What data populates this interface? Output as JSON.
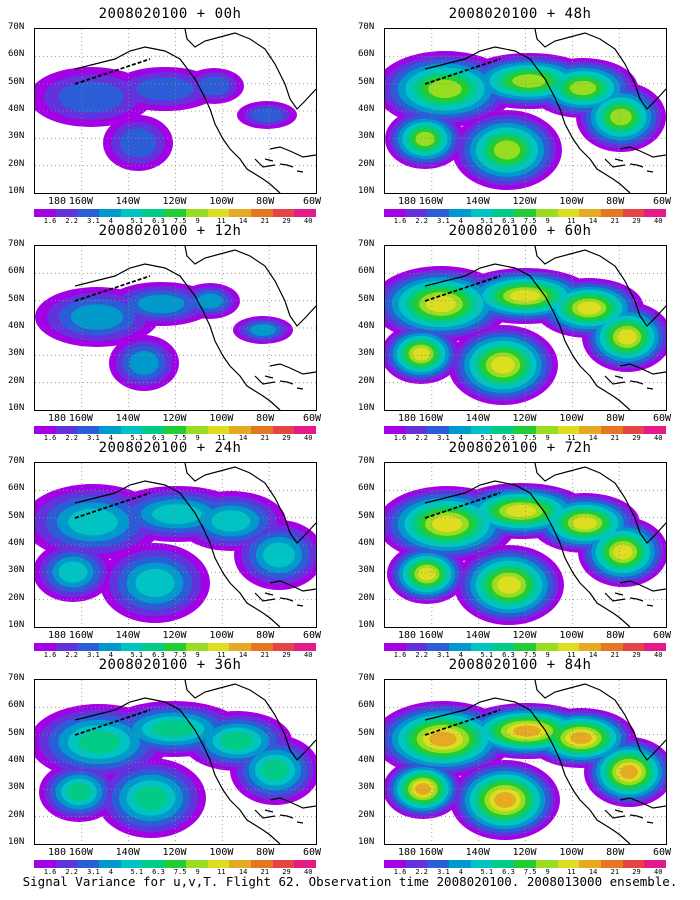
{
  "caption": "Signal Variance for u,v,T. Flight 62. Observation time 2008020100. 2008013000 ensemble.",
  "latitude_labels": [
    "70N",
    "60N",
    "50N",
    "40N",
    "30N",
    "20N",
    "10N"
  ],
  "longitude_labels": [
    "180",
    "160W",
    "140W",
    "120W",
    "100W",
    "80W",
    "60W"
  ],
  "colorbar_values": [
    "1.6",
    "2.2",
    "3.1",
    "4",
    "5.1",
    "6.3",
    "7.5",
    "9",
    "11",
    "14",
    "21",
    "29",
    "40"
  ],
  "colorbar_colors": [
    "#a300e5",
    "#6432dc",
    "#2c5cd6",
    "#0099cc",
    "#00c4c4",
    "#00cc88",
    "#22cc33",
    "#99dd22",
    "#dddd22",
    "#e5aa22",
    "#e57722",
    "#e54444",
    "#e51a8a"
  ],
  "panels": [
    {
      "title": "2008020100 + 00h",
      "intensity": 0.25
    },
    {
      "title": "2008020100 + 12h",
      "intensity": 0.35
    },
    {
      "title": "2008020100 + 24h",
      "intensity": 0.45
    },
    {
      "title": "2008020100 + 36h",
      "intensity": 0.55
    },
    {
      "title": "2008020100 + 48h",
      "intensity": 0.7
    },
    {
      "title": "2008020100 + 60h",
      "intensity": 0.8
    },
    {
      "title": "2008020100 + 72h",
      "intensity": 0.85
    },
    {
      "title": "2008020100 + 84h",
      "intensity": 0.95
    }
  ]
}
